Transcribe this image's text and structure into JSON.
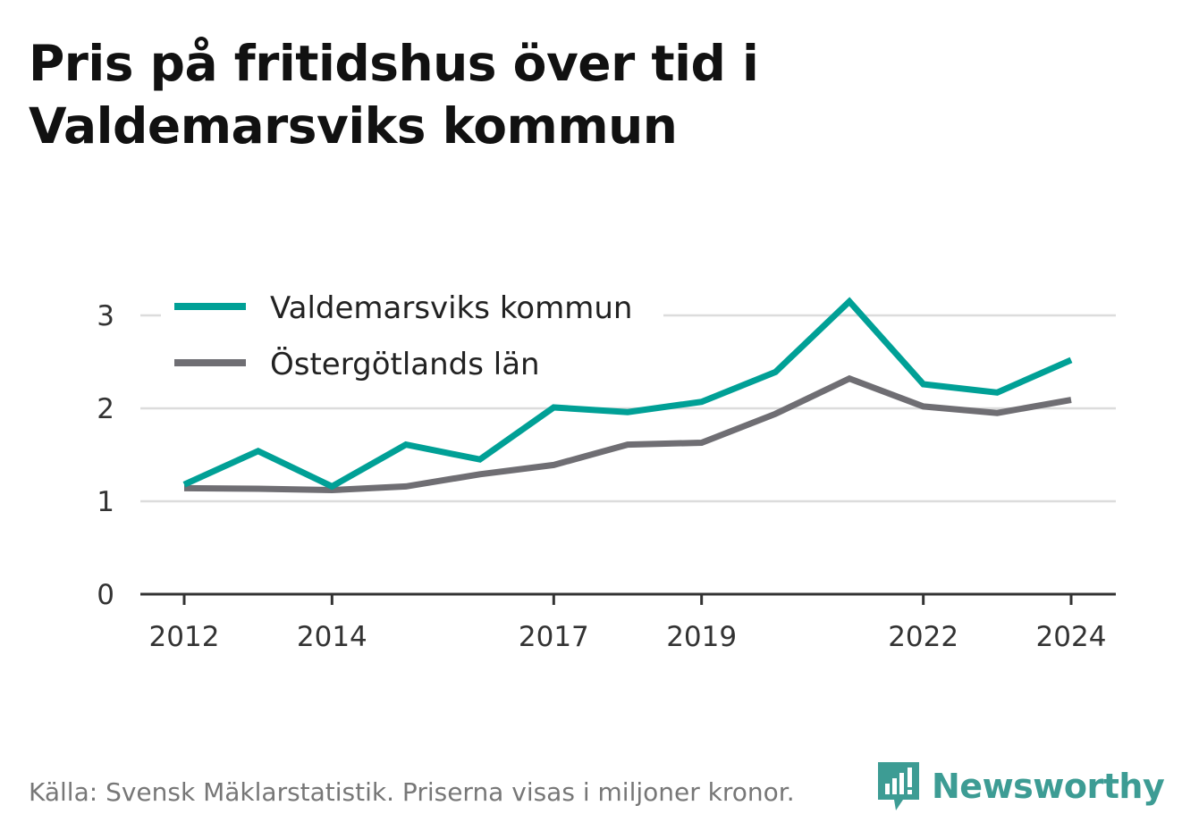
{
  "title": "Pris på fritidshus över tid i Valdemarsviks kommun",
  "source": "Källa: Svensk Mäklarstatistik. Priserna visas i miljoner kronor.",
  "brand": {
    "name": "Newsworthy",
    "color": "#3d9c94",
    "icon": "newsworthy-logo-icon"
  },
  "chart_data": {
    "type": "line",
    "x": [
      2012,
      2013,
      2014,
      2015,
      2016,
      2017,
      2018,
      2019,
      2020,
      2021,
      2022,
      2023,
      2024
    ],
    "x_tick_labels": [
      "2012",
      "2014",
      "2017",
      "2019",
      "2022",
      "2024"
    ],
    "x_tick_values": [
      2012,
      2014,
      2017,
      2019,
      2022,
      2024
    ],
    "y_tick_labels": [
      "0",
      "1",
      "2",
      "3"
    ],
    "y_tick_values": [
      0,
      1,
      2,
      3
    ],
    "ylim": [
      0,
      3.2
    ],
    "xlim": [
      2012,
      2024
    ],
    "grid": "horizontal",
    "legend_position": "top-left",
    "series": [
      {
        "name": "Valdemarsviks kommun",
        "color": "#00a096",
        "values": [
          1.18,
          1.54,
          1.16,
          1.61,
          1.45,
          2.01,
          1.96,
          2.07,
          2.39,
          3.15,
          2.26,
          2.17,
          2.52
        ]
      },
      {
        "name": "Östergötlands län",
        "color": "#6f6e73",
        "values": [
          1.14,
          1.135,
          1.12,
          1.16,
          1.29,
          1.39,
          1.61,
          1.63,
          1.94,
          2.32,
          2.02,
          1.95,
          2.09
        ]
      }
    ]
  }
}
